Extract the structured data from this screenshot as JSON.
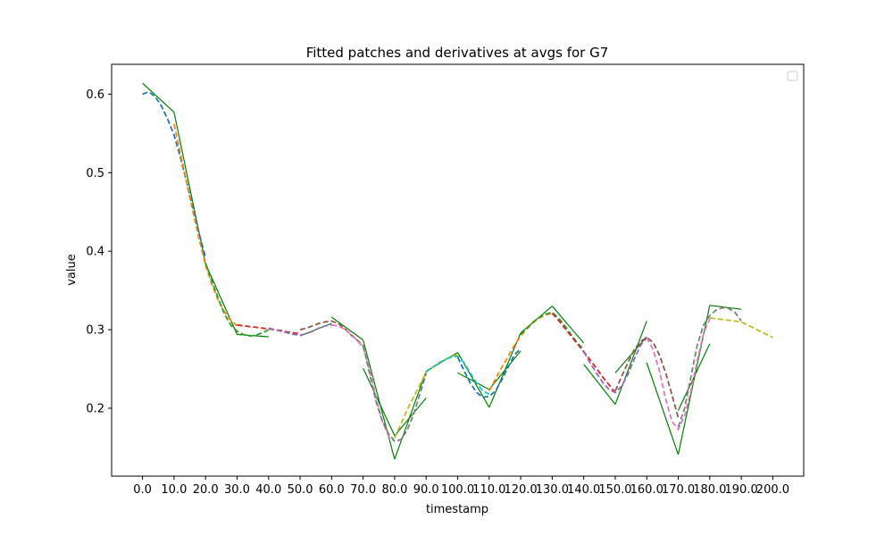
{
  "chart_data": {
    "type": "line",
    "title": "Fitted patches and derivatives at avgs for G7",
    "xlabel": "timestamp",
    "ylabel": "value",
    "xlim": [
      -9.8,
      209.8
    ],
    "ylim": [
      0.1135,
      0.638
    ],
    "xticks": [
      0,
      10,
      20,
      30,
      40,
      50,
      60,
      70,
      80,
      90,
      100,
      110,
      120,
      130,
      140,
      150,
      160,
      170,
      180,
      190,
      200
    ],
    "xtick_labels": [
      "0.0",
      "10.0",
      "20.0",
      "30.0",
      "40.0",
      "50.0",
      "60.0",
      "70.0",
      "80.0",
      "90.0",
      "100.0",
      "110.0",
      "120.0",
      "130.0",
      "140.0",
      "150.0",
      "160.0",
      "170.0",
      "180.0",
      "190.0",
      "200.0"
    ],
    "yticks": [
      0.2,
      0.3,
      0.4,
      0.5,
      0.6
    ],
    "ytick_labels": [
      "0.2",
      "0.3",
      "0.4",
      "0.5",
      "0.6"
    ],
    "grid": false,
    "legend": {
      "placement": "top-right",
      "entries": []
    },
    "fitted_patches": [
      {
        "color": "#1f77b4",
        "x": [
          0,
          2,
          4,
          6,
          8,
          10,
          12,
          14,
          16,
          18,
          20
        ],
        "y": [
          0.6,
          0.603,
          0.597,
          0.585,
          0.568,
          0.548,
          0.52,
          0.488,
          0.455,
          0.422,
          0.392
        ]
      },
      {
        "color": "#ff7f0e",
        "x": [
          10,
          12,
          14,
          16,
          18,
          20,
          22,
          24,
          26,
          28,
          30
        ],
        "y": [
          0.562,
          0.525,
          0.488,
          0.45,
          0.415,
          0.382,
          0.358,
          0.338,
          0.323,
          0.312,
          0.305
        ]
      },
      {
        "color": "#2ca02c",
        "x": [
          20,
          22,
          24,
          26,
          28,
          30,
          32,
          34,
          36,
          38,
          40
        ],
        "y": [
          0.385,
          0.362,
          0.34,
          0.32,
          0.306,
          0.298,
          0.294,
          0.292,
          0.293,
          0.296,
          0.3
        ]
      },
      {
        "color": "#d62728",
        "x": [
          30,
          32,
          34,
          36,
          38,
          40,
          42,
          44,
          46,
          48,
          50
        ],
        "y": [
          0.306,
          0.305,
          0.304,
          0.303,
          0.302,
          0.301,
          0.3,
          0.299,
          0.297,
          0.296,
          0.295
        ]
      },
      {
        "color": "#9467bd",
        "x": [
          40,
          42,
          44,
          46,
          48,
          50,
          52,
          54,
          56,
          58,
          60
        ],
        "y": [
          0.302,
          0.3,
          0.298,
          0.296,
          0.294,
          0.293,
          0.295,
          0.298,
          0.302,
          0.305,
          0.306
        ]
      },
      {
        "color": "#8c564b",
        "x": [
          50,
          52,
          54,
          56,
          58,
          60,
          62,
          64,
          66,
          68,
          70
        ],
        "y": [
          0.3,
          0.302,
          0.305,
          0.308,
          0.31,
          0.311,
          0.308,
          0.302,
          0.294,
          0.287,
          0.28
        ]
      },
      {
        "color": "#e377c2",
        "x": [
          60,
          62,
          64,
          66,
          68,
          70,
          72,
          74,
          76,
          78,
          80
        ],
        "y": [
          0.306,
          0.305,
          0.301,
          0.295,
          0.287,
          0.278,
          0.25,
          0.215,
          0.185,
          0.165,
          0.158
        ]
      },
      {
        "color": "#7f7f7f",
        "x": [
          70,
          72,
          74,
          76,
          78,
          80,
          82,
          84,
          86,
          88,
          90
        ],
        "y": [
          0.28,
          0.245,
          0.21,
          0.185,
          0.168,
          0.158,
          0.16,
          0.172,
          0.192,
          0.218,
          0.244
        ]
      },
      {
        "color": "#bcbd22",
        "x": [
          80,
          82,
          84,
          86,
          88,
          90,
          92,
          94,
          96,
          98,
          100
        ],
        "y": [
          0.162,
          0.18,
          0.198,
          0.214,
          0.23,
          0.246,
          0.252,
          0.258,
          0.262,
          0.266,
          0.268
        ]
      },
      {
        "color": "#17becf",
        "x": [
          90,
          92,
          94,
          96,
          98,
          100,
          102,
          104,
          106,
          108,
          110
        ],
        "y": [
          0.247,
          0.252,
          0.257,
          0.262,
          0.265,
          0.266,
          0.258,
          0.245,
          0.232,
          0.222,
          0.218
        ]
      },
      {
        "color": "#1f77b4",
        "x": [
          100,
          102,
          104,
          106,
          108,
          110,
          112,
          114,
          116,
          118,
          120
        ],
        "y": [
          0.265,
          0.248,
          0.232,
          0.22,
          0.214,
          0.215,
          0.222,
          0.236,
          0.252,
          0.268,
          0.276
        ]
      },
      {
        "color": "#ff7f0e",
        "x": [
          110,
          112,
          114,
          116,
          118,
          120,
          122,
          124,
          126,
          128,
          130
        ],
        "y": [
          0.222,
          0.237,
          0.252,
          0.266,
          0.28,
          0.292,
          0.301,
          0.309,
          0.315,
          0.319,
          0.321
        ]
      },
      {
        "color": "#2ca02c",
        "x": [
          120,
          122,
          124,
          126,
          128,
          130,
          132,
          134,
          136,
          138,
          140
        ],
        "y": [
          0.294,
          0.302,
          0.31,
          0.316,
          0.32,
          0.322,
          0.315,
          0.305,
          0.294,
          0.283,
          0.275
        ]
      },
      {
        "color": "#d62728",
        "x": [
          130,
          132,
          134,
          136,
          138,
          140,
          142,
          144,
          146,
          148,
          150
        ],
        "y": [
          0.321,
          0.312,
          0.302,
          0.292,
          0.282,
          0.272,
          0.262,
          0.251,
          0.24,
          0.23,
          0.22
        ]
      },
      {
        "color": "#9467bd",
        "x": [
          140,
          142,
          144,
          146,
          148,
          150,
          152,
          154,
          156,
          158,
          160
        ],
        "y": [
          0.272,
          0.258,
          0.245,
          0.233,
          0.224,
          0.22,
          0.228,
          0.243,
          0.262,
          0.28,
          0.29
        ]
      },
      {
        "color": "#8c564b",
        "x": [
          150,
          152,
          154,
          156,
          158,
          160,
          162,
          164,
          166,
          168,
          170
        ],
        "y": [
          0.222,
          0.24,
          0.258,
          0.274,
          0.285,
          0.29,
          0.284,
          0.268,
          0.245,
          0.217,
          0.188
        ]
      },
      {
        "color": "#e377c2",
        "x": [
          160,
          162,
          164,
          166,
          168,
          170,
          172,
          174,
          176,
          178,
          180
        ],
        "y": [
          0.29,
          0.275,
          0.248,
          0.212,
          0.183,
          0.173,
          0.19,
          0.222,
          0.26,
          0.295,
          0.314
        ]
      },
      {
        "color": "#7f7f7f",
        "x": [
          170,
          172,
          174,
          176,
          178,
          180,
          182,
          184,
          186,
          188,
          190
        ],
        "y": [
          0.176,
          0.2,
          0.24,
          0.28,
          0.306,
          0.318,
          0.325,
          0.328,
          0.327,
          0.322,
          0.311
        ]
      },
      {
        "color": "#bcbd22",
        "x": [
          180,
          182,
          184,
          186,
          188,
          190,
          192,
          194,
          196,
          198,
          200
        ],
        "y": [
          0.315,
          0.314,
          0.313,
          0.312,
          0.311,
          0.31,
          0.306,
          0.302,
          0.298,
          0.294,
          0.29
        ]
      }
    ],
    "derivative_lines": [
      {
        "color": "#008000",
        "x": [
          0,
          10
        ],
        "y": [
          0.614,
          0.577
        ]
      },
      {
        "color": "#008000",
        "x": [
          10,
          20
        ],
        "y": [
          0.577,
          0.384
        ]
      },
      {
        "color": "#008000",
        "x": [
          20,
          30
        ],
        "y": [
          0.384,
          0.294
        ]
      },
      {
        "color": "#008000",
        "x": [
          30,
          40
        ],
        "y": [
          0.294,
          0.291
        ]
      },
      {
        "color": "#008000",
        "x": [
          50,
          60
        ],
        "y": [
          0.292,
          0.308
        ]
      },
      {
        "color": "#008000",
        "x": [
          60,
          70
        ],
        "y": [
          0.316,
          0.287
        ]
      },
      {
        "color": "#008000",
        "x": [
          70,
          80
        ],
        "y": [
          0.287,
          0.135
        ]
      },
      {
        "color": "#008000",
        "x": [
          80,
          90
        ],
        "y": [
          0.135,
          0.247
        ]
      },
      {
        "color": "#008000",
        "x": [
          90,
          100
        ],
        "y": [
          0.247,
          0.271
        ]
      },
      {
        "color": "#008000",
        "x": [
          100,
          110
        ],
        "y": [
          0.271,
          0.201
        ]
      },
      {
        "color": "#008000",
        "x": [
          110,
          120
        ],
        "y": [
          0.201,
          0.296
        ]
      },
      {
        "color": "#008000",
        "x": [
          120,
          130
        ],
        "y": [
          0.296,
          0.33
        ]
      },
      {
        "color": "#008000",
        "x": [
          130,
          140
        ],
        "y": [
          0.33,
          0.283
        ]
      },
      {
        "color": "#008000",
        "x": [
          140,
          150
        ],
        "y": [
          0.256,
          0.205
        ]
      },
      {
        "color": "#008000",
        "x": [
          150,
          160
        ],
        "y": [
          0.205,
          0.311
        ]
      },
      {
        "color": "#008000",
        "x": [
          160,
          170
        ],
        "y": [
          0.258,
          0.141
        ]
      },
      {
        "color": "#008000",
        "x": [
          170,
          180
        ],
        "y": [
          0.141,
          0.331
        ]
      },
      {
        "color": "#008000",
        "x": [
          180,
          190
        ],
        "y": [
          0.331,
          0.326
        ]
      },
      {
        "color": "#008000",
        "x": [
          70,
          80
        ],
        "y": [
          0.251,
          0.165
        ]
      },
      {
        "color": "#008000",
        "x": [
          80,
          90
        ],
        "y": [
          0.165,
          0.213
        ]
      },
      {
        "color": "#008000",
        "x": [
          100,
          110
        ],
        "y": [
          0.245,
          0.224
        ]
      },
      {
        "color": "#008000",
        "x": [
          110,
          120
        ],
        "y": [
          0.224,
          0.273
        ]
      },
      {
        "color": "#008000",
        "x": [
          150,
          160
        ],
        "y": [
          0.245,
          0.291
        ]
      },
      {
        "color": "#008000",
        "x": [
          170,
          180
        ],
        "y": [
          0.197,
          0.282
        ]
      }
    ]
  }
}
